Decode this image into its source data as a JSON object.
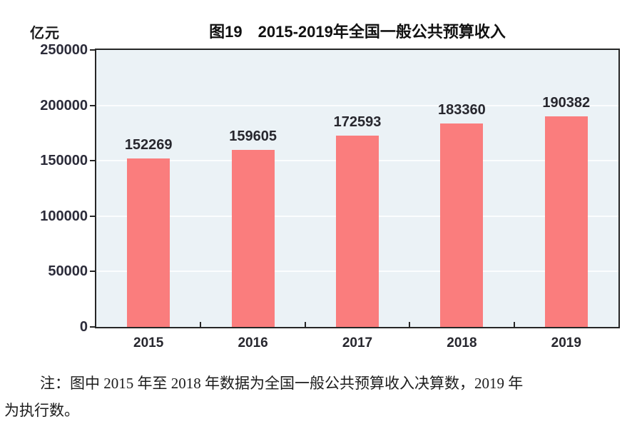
{
  "page": {
    "background": "#ffffff"
  },
  "chart_data": {
    "type": "bar",
    "title": "图19　2015-2019年全国一般公共预算收入",
    "unit_label": "亿元",
    "categories": [
      "2015",
      "2016",
      "2017",
      "2018",
      "2019"
    ],
    "values": [
      152269,
      159605,
      172593,
      183360,
      190382
    ],
    "xlabel": "",
    "ylabel": "亿元",
    "ylim": [
      0,
      250000
    ],
    "yticks": [
      0,
      50000,
      100000,
      150000,
      200000,
      250000
    ],
    "grid": "horizontal",
    "legend_position": "none",
    "bar_color": "#fa7d7d",
    "plot_background": "#ebf2f6",
    "gridline_color": "#fbfdfe",
    "axis_color": "#262626",
    "label_color": "#27272e"
  },
  "note": {
    "line1": "注：图中 2015 年至 2018 年数据为全国一般公共预算收入决算数，2019 年",
    "line2": "为执行数。"
  }
}
